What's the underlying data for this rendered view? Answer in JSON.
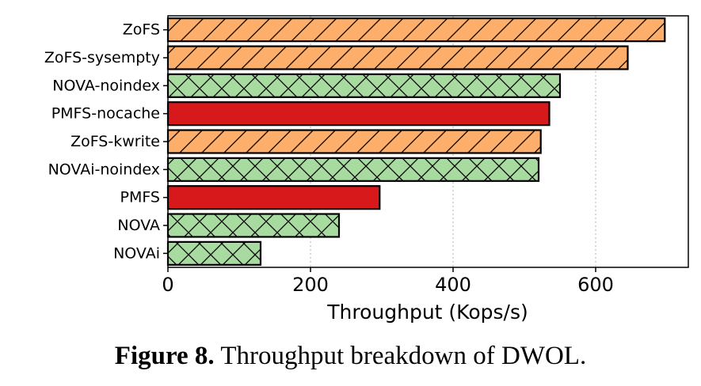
{
  "chart_data": {
    "type": "bar",
    "orientation": "horizontal",
    "categories": [
      "ZoFS",
      "ZoFS-sysempty",
      "NOVA-noindex",
      "PMFS-nocache",
      "ZoFS-kwrite",
      "NOVAi-noindex",
      "PMFS",
      "NOVA",
      "NOVAi"
    ],
    "values": [
      697,
      645,
      550,
      535,
      523,
      520,
      297,
      240,
      130
    ],
    "styles": [
      "zofs",
      "zofs",
      "nova",
      "pmfs",
      "zofs",
      "nova",
      "pmfs",
      "nova",
      "nova"
    ],
    "xlabel": "Throughput (Kops/s)",
    "ylabel": "",
    "xlim": [
      0,
      730
    ],
    "xticks": [
      0,
      200,
      400,
      600
    ],
    "grid": "vertical-dotted",
    "colors": {
      "zofs": "#fdae6b",
      "nova": "#a8dba0",
      "pmfs": "#d7191c",
      "edge": "#000000",
      "grid": "#b0b0b0"
    },
    "hatches": {
      "zofs": "diagonal",
      "nova": "cross",
      "pmfs": "none"
    }
  },
  "caption": {
    "label": "Figure 8.",
    "text": " Throughput breakdown of DWOL."
  }
}
